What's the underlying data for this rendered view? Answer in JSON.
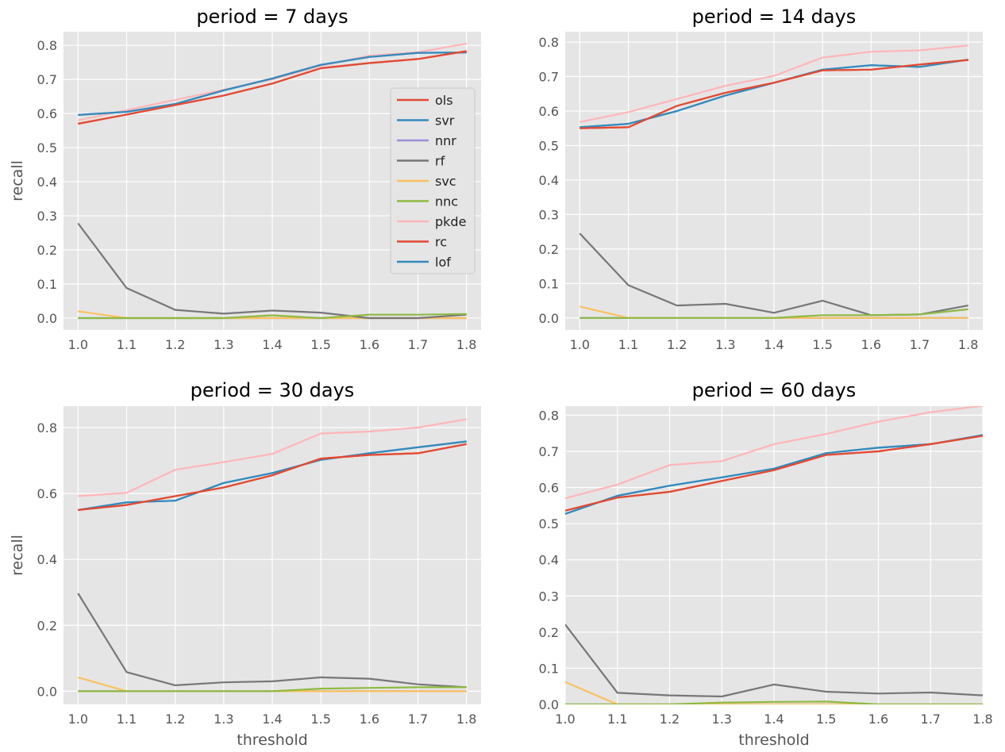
{
  "colors": {
    "ols": "#E24A33",
    "svr": "#348ABD",
    "nnr": "#988ED5",
    "rf": "#777777",
    "svc": "#FBC15E",
    "nnc": "#8EBA42",
    "pkde": "#FFB5B8",
    "rc": "#E24A33",
    "lof": "#348ABD",
    "panel_bg": "#E5E5E5",
    "grid": "#FFFFFF"
  },
  "chart_data": [
    {
      "type": "line",
      "title": "period = 7 days",
      "xlabel": "",
      "ylabel": "recall",
      "x": [
        1.0,
        1.1,
        1.2,
        1.3,
        1.4,
        1.5,
        1.6,
        1.7,
        1.8
      ],
      "xlim": [
        0.97,
        1.83
      ],
      "ylim": [
        -0.035,
        0.84
      ],
      "xticks": [
        "1.0",
        "1.1",
        "1.2",
        "1.3",
        "1.4",
        "1.5",
        "1.6",
        "1.7",
        "1.8"
      ],
      "yticks": [
        {
          "v": 0.0,
          "label": "0.0"
        },
        {
          "v": 0.1,
          "label": "0.1"
        },
        {
          "v": 0.2,
          "label": "0.2"
        },
        {
          "v": 0.3,
          "label": "0.3"
        },
        {
          "v": 0.4,
          "label": "0.4"
        },
        {
          "v": 0.5,
          "label": "0.5"
        },
        {
          "v": 0.6,
          "label": "0.6"
        },
        {
          "v": 0.7,
          "label": "0.7"
        },
        {
          "v": 0.8,
          "label": "0.8"
        }
      ],
      "grid": true,
      "legend": {
        "placement": "center-right",
        "entries": [
          "ols",
          "svr",
          "nnr",
          "rf",
          "svc",
          "nnc",
          "pkde",
          "rc",
          "lof"
        ]
      },
      "series": [
        {
          "name": "pkde",
          "values": [
            0.58,
            0.61,
            0.64,
            0.67,
            0.7,
            0.74,
            0.77,
            0.78,
            0.805
          ]
        },
        {
          "name": "nnr",
          "values": [
            0.0,
            0.0,
            0.0,
            0.0,
            0.0,
            0.0,
            0.0,
            0.0,
            0.0
          ]
        },
        {
          "name": "svc",
          "values": [
            0.02,
            0.0,
            0.0,
            0.0,
            0.0,
            0.0,
            0.0,
            0.0,
            0.0
          ]
        },
        {
          "name": "rf",
          "values": [
            0.278,
            0.088,
            0.024,
            0.013,
            0.022,
            0.016,
            0.0,
            0.0,
            0.01
          ]
        },
        {
          "name": "nnc",
          "values": [
            0.0,
            0.0,
            0.0,
            0.0,
            0.008,
            0.0,
            0.01,
            0.01,
            0.012
          ]
        },
        {
          "name": "svr",
          "values": [
            0.596,
            0.605,
            0.628,
            0.668,
            0.703,
            0.743,
            0.766,
            0.778,
            0.779
          ]
        },
        {
          "name": "lof",
          "values": [
            0.596,
            0.605,
            0.628,
            0.668,
            0.703,
            0.743,
            0.766,
            0.778,
            0.779
          ]
        },
        {
          "name": "ols",
          "values": [
            0.57,
            0.597,
            0.625,
            0.653,
            0.688,
            0.733,
            0.748,
            0.76,
            0.783
          ]
        },
        {
          "name": "rc",
          "values": [
            0.57,
            0.597,
            0.625,
            0.653,
            0.688,
            0.733,
            0.748,
            0.76,
            0.783
          ]
        }
      ]
    },
    {
      "type": "line",
      "title": "period = 14 days",
      "xlabel": "",
      "ylabel": "",
      "x": [
        1.0,
        1.1,
        1.2,
        1.3,
        1.4,
        1.5,
        1.6,
        1.7,
        1.8
      ],
      "xlim": [
        0.97,
        1.83
      ],
      "ylim": [
        -0.035,
        0.83
      ],
      "xticks": [
        "1.0",
        "1.1",
        "1.2",
        "1.3",
        "1.4",
        "1.5",
        "1.6",
        "1.7",
        "1.8"
      ],
      "yticks": [
        {
          "v": 0.0,
          "label": "0.0"
        },
        {
          "v": 0.1,
          "label": "0.1"
        },
        {
          "v": 0.2,
          "label": "0.2"
        },
        {
          "v": 0.3,
          "label": "0.3"
        },
        {
          "v": 0.4,
          "label": "0.4"
        },
        {
          "v": 0.5,
          "label": "0.5"
        },
        {
          "v": 0.6,
          "label": "0.6"
        },
        {
          "v": 0.7,
          "label": "0.7"
        },
        {
          "v": 0.8,
          "label": "0.8"
        }
      ],
      "grid": true,
      "series": [
        {
          "name": "pkde",
          "values": [
            0.568,
            0.597,
            0.635,
            0.673,
            0.702,
            0.755,
            0.772,
            0.776,
            0.79
          ]
        },
        {
          "name": "nnr",
          "values": [
            0.0,
            0.0,
            0.0,
            0.0,
            0.0,
            0.0,
            0.0,
            0.0,
            0.0
          ]
        },
        {
          "name": "svc",
          "values": [
            0.033,
            0.0,
            0.0,
            0.0,
            0.0,
            0.0,
            0.0,
            0.0,
            0.0
          ]
        },
        {
          "name": "rf",
          "values": [
            0.245,
            0.095,
            0.036,
            0.041,
            0.015,
            0.05,
            0.008,
            0.01,
            0.036
          ]
        },
        {
          "name": "nnc",
          "values": [
            0.0,
            0.0,
            0.0,
            0.0,
            0.0,
            0.008,
            0.008,
            0.01,
            0.025
          ]
        },
        {
          "name": "svr",
          "values": [
            0.553,
            0.563,
            0.6,
            0.645,
            0.682,
            0.72,
            0.733,
            0.728,
            0.749
          ]
        },
        {
          "name": "lof",
          "values": [
            0.553,
            0.563,
            0.6,
            0.645,
            0.682,
            0.72,
            0.733,
            0.728,
            0.749
          ]
        },
        {
          "name": "ols",
          "values": [
            0.55,
            0.553,
            0.615,
            0.653,
            0.682,
            0.718,
            0.72,
            0.735,
            0.748
          ]
        },
        {
          "name": "rc",
          "values": [
            0.55,
            0.553,
            0.615,
            0.653,
            0.682,
            0.718,
            0.72,
            0.735,
            0.748
          ]
        }
      ]
    },
    {
      "type": "line",
      "title": "period = 30 days",
      "xlabel": "threshold",
      "ylabel": "recall",
      "x": [
        1.0,
        1.1,
        1.2,
        1.3,
        1.4,
        1.5,
        1.6,
        1.7,
        1.8
      ],
      "xlim": [
        0.97,
        1.83
      ],
      "ylim": [
        -0.04,
        0.865
      ],
      "xticks": [
        "1.0",
        "1.1",
        "1.2",
        "1.3",
        "1.4",
        "1.5",
        "1.6",
        "1.7",
        "1.8"
      ],
      "yticks": [
        {
          "v": 0.0,
          "label": "0.0"
        },
        {
          "v": 0.2,
          "label": "0.2"
        },
        {
          "v": 0.4,
          "label": "0.4"
        },
        {
          "v": 0.6,
          "label": "0.6"
        },
        {
          "v": 0.8,
          "label": "0.8"
        }
      ],
      "grid": true,
      "series": [
        {
          "name": "pkde",
          "values": [
            0.592,
            0.602,
            0.672,
            0.695,
            0.72,
            0.782,
            0.788,
            0.8,
            0.825
          ]
        },
        {
          "name": "nnr",
          "values": [
            0.0,
            0.0,
            0.0,
            0.0,
            0.0,
            0.0,
            0.0,
            0.0,
            0.0
          ]
        },
        {
          "name": "svc",
          "values": [
            0.042,
            0.0,
            0.0,
            0.0,
            0.0,
            0.0,
            0.0,
            0.0,
            0.0
          ]
        },
        {
          "name": "rf",
          "values": [
            0.297,
            0.058,
            0.018,
            0.027,
            0.03,
            0.042,
            0.038,
            0.021,
            0.012
          ]
        },
        {
          "name": "nnc",
          "values": [
            0.0,
            0.0,
            0.0,
            0.0,
            0.0,
            0.008,
            0.01,
            0.012,
            0.012
          ]
        },
        {
          "name": "svr",
          "values": [
            0.55,
            0.573,
            0.578,
            0.632,
            0.662,
            0.702,
            0.722,
            0.74,
            0.758
          ]
        },
        {
          "name": "lof",
          "values": [
            0.55,
            0.573,
            0.578,
            0.632,
            0.662,
            0.702,
            0.722,
            0.74,
            0.758
          ]
        },
        {
          "name": "ols",
          "values": [
            0.55,
            0.565,
            0.592,
            0.618,
            0.655,
            0.706,
            0.717,
            0.722,
            0.75
          ]
        },
        {
          "name": "rc",
          "values": [
            0.55,
            0.565,
            0.592,
            0.618,
            0.655,
            0.706,
            0.717,
            0.722,
            0.75
          ]
        }
      ]
    },
    {
      "type": "line",
      "title": "period = 60 days",
      "xlabel": "threshold",
      "ylabel": "",
      "x": [
        1.0,
        1.1,
        1.2,
        1.3,
        1.4,
        1.5,
        1.6,
        1.7,
        1.8
      ],
      "xlim": [
        1.0,
        1.8
      ],
      "ylim": [
        0.0,
        0.825
      ],
      "xticks": [
        "1.0",
        "1.1",
        "1.2",
        "1.3",
        "1.4",
        "1.5",
        "1.6",
        "1.7",
        "1.8"
      ],
      "yticks": [
        {
          "v": 0.0,
          "label": "0.0"
        },
        {
          "v": 0.1,
          "label": "0.1"
        },
        {
          "v": 0.2,
          "label": "0.2"
        },
        {
          "v": 0.3,
          "label": "0.3"
        },
        {
          "v": 0.4,
          "label": "0.4"
        },
        {
          "v": 0.5,
          "label": "0.5"
        },
        {
          "v": 0.6,
          "label": "0.6"
        },
        {
          "v": 0.7,
          "label": "0.7"
        },
        {
          "v": 0.8,
          "label": "0.8"
        }
      ],
      "grid": true,
      "series": [
        {
          "name": "pkde",
          "values": [
            0.57,
            0.608,
            0.662,
            0.673,
            0.72,
            0.748,
            0.782,
            0.808,
            0.826
          ]
        },
        {
          "name": "nnr",
          "values": [
            0.0,
            0.0,
            0.0,
            0.0,
            0.0,
            0.0,
            0.0,
            0.0,
            0.0
          ]
        },
        {
          "name": "svc",
          "values": [
            0.062,
            0.0,
            0.0,
            0.0,
            0.0,
            0.0,
            0.0,
            0.0,
            0.0
          ]
        },
        {
          "name": "rf",
          "values": [
            0.221,
            0.032,
            0.025,
            0.022,
            0.055,
            0.035,
            0.03,
            0.033,
            0.025
          ]
        },
        {
          "name": "nnc",
          "values": [
            0.0,
            0.0,
            0.0,
            0.005,
            0.007,
            0.008,
            0.0,
            0.0,
            0.0
          ]
        },
        {
          "name": "svr",
          "values": [
            0.527,
            0.577,
            0.605,
            0.628,
            0.652,
            0.695,
            0.71,
            0.72,
            0.745
          ]
        },
        {
          "name": "lof",
          "values": [
            0.527,
            0.577,
            0.605,
            0.628,
            0.652,
            0.695,
            0.71,
            0.72,
            0.745
          ]
        },
        {
          "name": "ols",
          "values": [
            0.536,
            0.572,
            0.588,
            0.618,
            0.648,
            0.69,
            0.7,
            0.72,
            0.743
          ]
        },
        {
          "name": "rc",
          "values": [
            0.536,
            0.572,
            0.588,
            0.618,
            0.648,
            0.69,
            0.7,
            0.72,
            0.743
          ]
        }
      ]
    }
  ]
}
